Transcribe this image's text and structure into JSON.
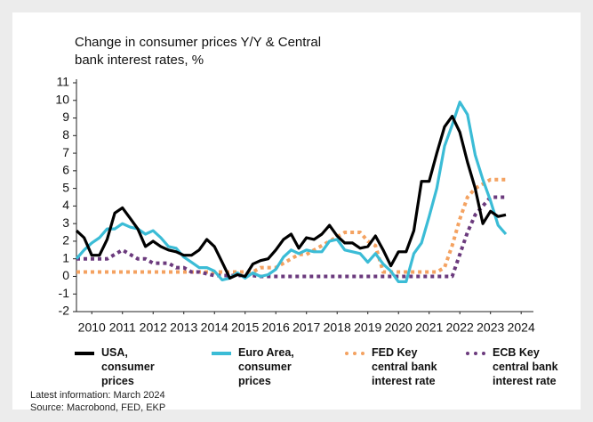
{
  "chart_data": {
    "type": "line",
    "title": "Change in consumer prices Y/Y & Central bank interest rates, %",
    "x": [
      2010,
      2010.25,
      2010.5,
      2010.75,
      2011,
      2011.25,
      2011.5,
      2011.75,
      2012,
      2012.25,
      2012.5,
      2012.75,
      2013,
      2013.25,
      2013.5,
      2013.75,
      2014,
      2014.25,
      2014.5,
      2014.75,
      2015,
      2015.25,
      2015.5,
      2015.75,
      2016,
      2016.25,
      2016.5,
      2016.75,
      2017,
      2017.25,
      2017.5,
      2017.75,
      2018,
      2018.25,
      2018.5,
      2018.75,
      2019,
      2019.25,
      2019.5,
      2019.75,
      2020,
      2020.25,
      2020.5,
      2020.75,
      2021,
      2021.25,
      2021.5,
      2021.75,
      2022,
      2022.25,
      2022.5,
      2022.75,
      2023,
      2023.25,
      2023.5,
      2023.75,
      2024
    ],
    "xlim": [
      2010,
      2024.9
    ],
    "xticks": [
      {
        "value": 2010.5,
        "label": "2010"
      },
      {
        "value": 2011.5,
        "label": "2011"
      },
      {
        "value": 2012.5,
        "label": "2012"
      },
      {
        "value": 2013.5,
        "label": "2013"
      },
      {
        "value": 2014.5,
        "label": "2014"
      },
      {
        "value": 2015.5,
        "label": "2015"
      },
      {
        "value": 2016.5,
        "label": "2016"
      },
      {
        "value": 2017.5,
        "label": "2017"
      },
      {
        "value": 2018.5,
        "label": "2018"
      },
      {
        "value": 2019.5,
        "label": "2019"
      },
      {
        "value": 2020.5,
        "label": "2020"
      },
      {
        "value": 2021.5,
        "label": "2021"
      },
      {
        "value": 2022.5,
        "label": "2022"
      },
      {
        "value": 2023.5,
        "label": "2023"
      },
      {
        "value": 2024.5,
        "label": "2024"
      }
    ],
    "ylim": [
      -2,
      11
    ],
    "yticks": [
      -2,
      -1,
      0,
      1,
      2,
      3,
      4,
      5,
      6,
      7,
      8,
      9,
      10,
      11
    ],
    "grid": false,
    "series": [
      {
        "name": "USA, consumer prices",
        "color": "#000000",
        "style": "solid",
        "values": [
          2.6,
          2.2,
          1.2,
          1.2,
          2.1,
          3.6,
          3.9,
          3.3,
          2.7,
          1.7,
          2.0,
          1.7,
          1.5,
          1.4,
          1.2,
          1.2,
          1.5,
          2.1,
          1.7,
          0.8,
          -0.1,
          0.1,
          0.0,
          0.7,
          0.9,
          1.0,
          1.5,
          2.1,
          2.4,
          1.6,
          2.2,
          2.1,
          2.4,
          2.9,
          2.3,
          1.9,
          1.9,
          1.6,
          1.7,
          2.3,
          1.5,
          0.6,
          1.4,
          1.4,
          2.6,
          5.4,
          5.4,
          7.0,
          8.5,
          9.1,
          8.2,
          6.5,
          5.0,
          3.0,
          3.7,
          3.4,
          3.5
        ]
      },
      {
        "name": "Euro Area, consumer prices",
        "color": "#3bbcd6",
        "style": "solid",
        "values": [
          1.0,
          1.5,
          1.9,
          2.2,
          2.7,
          2.7,
          3.0,
          2.8,
          2.7,
          2.4,
          2.6,
          2.2,
          1.7,
          1.6,
          1.1,
          0.8,
          0.5,
          0.5,
          0.3,
          -0.2,
          -0.1,
          0.2,
          -0.1,
          0.2,
          0.0,
          0.1,
          0.4,
          1.1,
          1.5,
          1.3,
          1.5,
          1.4,
          1.4,
          2.0,
          2.1,
          1.5,
          1.4,
          1.3,
          0.8,
          1.3,
          0.7,
          0.3,
          -0.3,
          -0.3,
          1.3,
          1.9,
          3.4,
          5.0,
          7.4,
          8.6,
          9.9,
          9.2,
          6.9,
          5.5,
          4.3,
          2.9,
          2.4
        ]
      },
      {
        "name": "FED Key central bank interest rate",
        "color": "#f4a261",
        "style": "dotted",
        "values": [
          0.25,
          0.25,
          0.25,
          0.25,
          0.25,
          0.25,
          0.25,
          0.25,
          0.25,
          0.25,
          0.25,
          0.25,
          0.25,
          0.25,
          0.25,
          0.25,
          0.25,
          0.25,
          0.25,
          0.25,
          0.25,
          0.25,
          0.25,
          0.25,
          0.5,
          0.5,
          0.5,
          0.75,
          1.0,
          1.25,
          1.25,
          1.5,
          1.75,
          2.0,
          2.25,
          2.5,
          2.5,
          2.5,
          2.0,
          1.75,
          0.25,
          0.25,
          0.25,
          0.25,
          0.25,
          0.25,
          0.25,
          0.25,
          0.5,
          1.75,
          3.25,
          4.5,
          5.0,
          5.25,
          5.5,
          5.5,
          5.5
        ]
      },
      {
        "name": "ECB Key central bank interest rate",
        "color": "#6b3a7d",
        "style": "dotted",
        "values": [
          1,
          1,
          1,
          1,
          1,
          1.25,
          1.5,
          1.25,
          1,
          1,
          0.75,
          0.75,
          0.75,
          0.5,
          0.5,
          0.25,
          0.25,
          0.15,
          0.05,
          0.05,
          0.05,
          0.05,
          0.05,
          0.05,
          0,
          0,
          0,
          0,
          0,
          0,
          0,
          0,
          0,
          0,
          0,
          0,
          0,
          0,
          0,
          0,
          0,
          0,
          0,
          0,
          0,
          0,
          0,
          0,
          0,
          0,
          1.25,
          2.5,
          3.5,
          4.0,
          4.5,
          4.5,
          4.5
        ]
      }
    ],
    "notes": [
      "Latest information: March 2024",
      "Source: Macrobond, FED, EKP"
    ]
  }
}
